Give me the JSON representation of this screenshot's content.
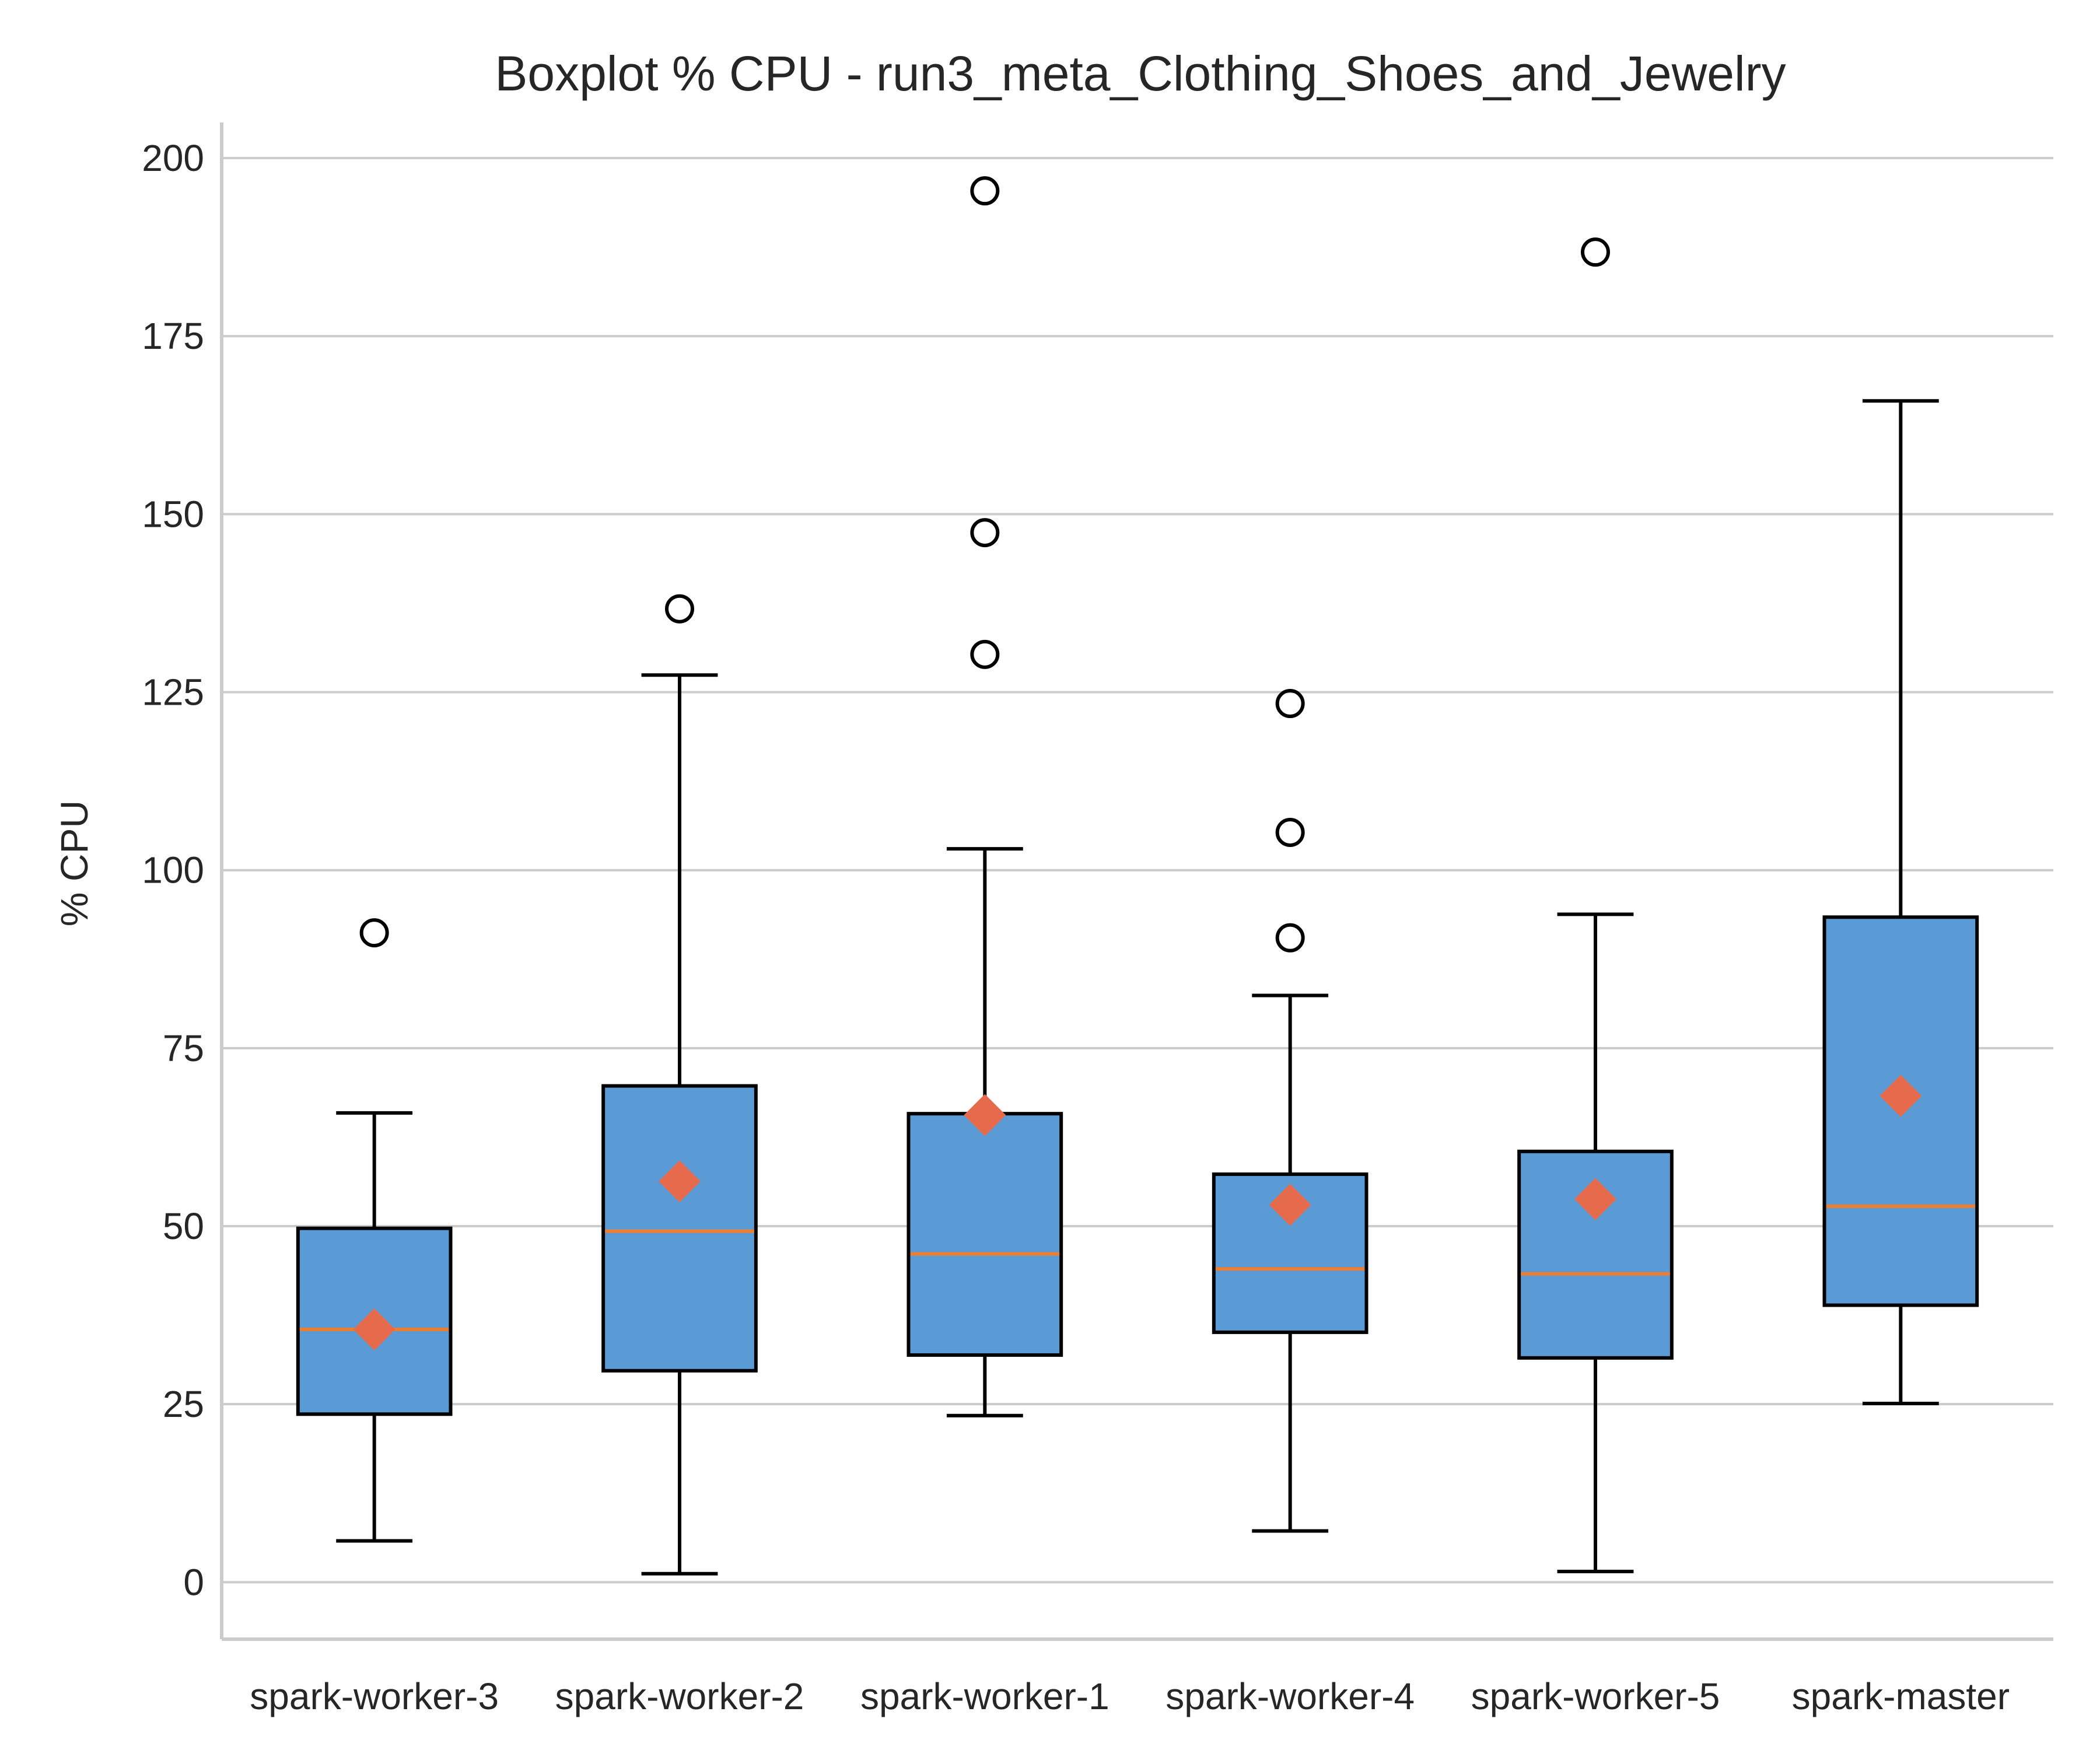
{
  "chart_data": {
    "type": "boxplot",
    "title": "Boxplot % CPU - run3_meta_Clothing_Shoes_and_Jewelry",
    "xlabel": "",
    "ylabel": "% CPU",
    "ylim": [
      -8,
      205
    ],
    "yticks": [
      0,
      25,
      50,
      75,
      100,
      125,
      150,
      175,
      200
    ],
    "grid": "horizontal",
    "colors": {
      "box": "#5b9bd5",
      "median": "#ed7d31",
      "mean": "#e66b4d",
      "edge": "#000000",
      "grid": "#cccccc"
    },
    "categories": [
      "spark-worker-3",
      "spark-worker-2",
      "spark-worker-1",
      "spark-worker-4",
      "spark-worker-5",
      "spark-master"
    ],
    "boxes": [
      {
        "whisker_low": 5.8,
        "q1": 23.6,
        "median": 35.5,
        "q3": 49.7,
        "whisker_high": 65.9,
        "mean": 35.5,
        "outliers": [
          91.2
        ]
      },
      {
        "whisker_low": 1.2,
        "q1": 29.7,
        "median": 49.3,
        "q3": 69.7,
        "whisker_high": 127.4,
        "mean": 56.3,
        "outliers": [
          136.7
        ]
      },
      {
        "whisker_low": 23.4,
        "q1": 31.9,
        "median": 46.1,
        "q3": 65.8,
        "whisker_high": 103.0,
        "mean": 65.6,
        "outliers": [
          130.3,
          147.4,
          195.4
        ]
      },
      {
        "whisker_low": 7.2,
        "q1": 35.1,
        "median": 44.0,
        "q3": 57.3,
        "whisker_high": 82.4,
        "mean": 53.0,
        "outliers": [
          90.5,
          105.3,
          123.4
        ]
      },
      {
        "whisker_low": 1.5,
        "q1": 31.5,
        "median": 43.3,
        "q3": 60.5,
        "whisker_high": 93.8,
        "mean": 53.8,
        "outliers": [
          186.8
        ]
      },
      {
        "whisker_low": 25.1,
        "q1": 38.9,
        "median": 52.8,
        "q3": 93.4,
        "whisker_high": 165.9,
        "mean": 68.3,
        "outliers": []
      }
    ]
  }
}
